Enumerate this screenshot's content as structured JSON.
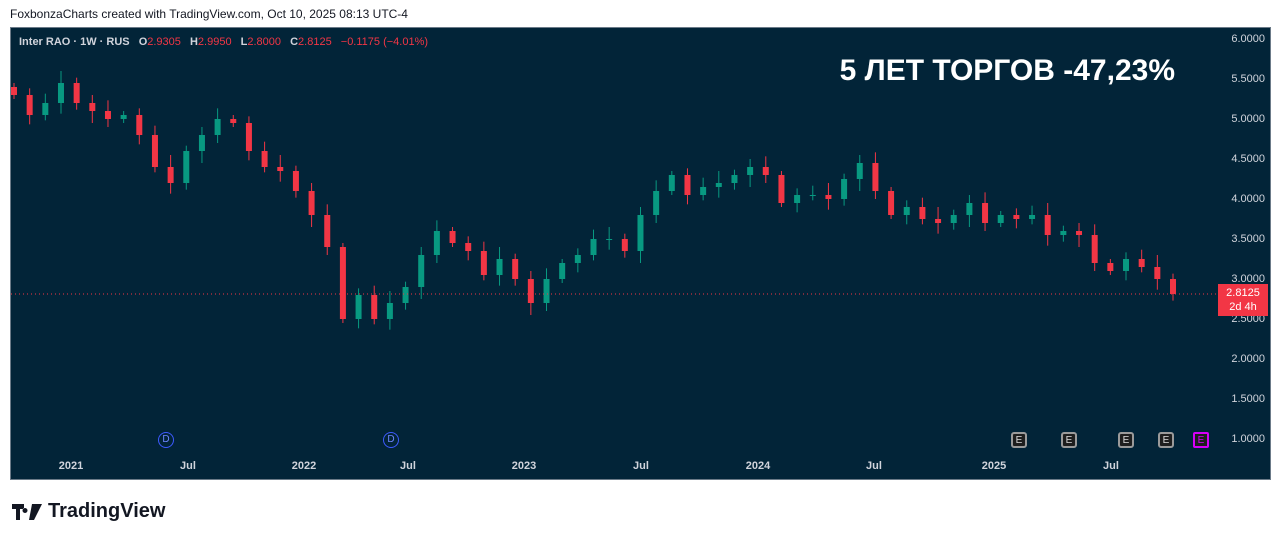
{
  "caption": "FoxbonzaCharts created with TradingView.com, Oct 10, 2025 08:13 UTC-4",
  "legend": {
    "symbol": "Inter RAO · 1W · RUS",
    "o_label": "O",
    "o": "2.9305",
    "h_label": "H",
    "h": "2.9950",
    "l_label": "L",
    "l": "2.8000",
    "c_label": "C",
    "c": "2.8125",
    "change": "−0.1175 (−4.01%)"
  },
  "headline": "5 ЛЕТ ТОРГОВ -47,23%",
  "current_price": {
    "value": "2.8125",
    "countdown": "2d 4h"
  },
  "colors": {
    "up": "#089981",
    "down": "#f23645",
    "background": "#022438"
  },
  "events": {
    "dividend": "D",
    "earnings": "E"
  },
  "logo": "TradingView",
  "chart_data": {
    "type": "candlestick",
    "title": "5 ЛЕТ ТОРГОВ -47,23%",
    "x_ticks": [
      "2021",
      "Jul",
      "2022",
      "Jul",
      "2023",
      "Jul",
      "2024",
      "Jul",
      "2025",
      "Jul"
    ],
    "y_ticks": [
      "6.0000",
      "5.5000",
      "5.0000",
      "4.5000",
      "4.0000",
      "3.5000",
      "3.0000",
      "2.5000",
      "2.0000",
      "1.5000",
      "1.0000"
    ],
    "ylim": [
      1.0,
      6.0
    ],
    "period": "Oct 2020 – Oct 2025",
    "closes": [
      5.3,
      5.05,
      5.2,
      5.45,
      5.2,
      5.1,
      5.0,
      5.05,
      4.8,
      4.4,
      4.2,
      4.6,
      4.8,
      5.0,
      4.95,
      4.6,
      4.4,
      4.35,
      4.1,
      3.8,
      3.4,
      2.5,
      2.8,
      2.5,
      2.7,
      2.9,
      3.3,
      3.6,
      3.45,
      3.35,
      3.05,
      3.25,
      3.0,
      2.7,
      3.0,
      3.2,
      3.3,
      3.5,
      3.5,
      3.35,
      3.8,
      4.1,
      4.3,
      4.05,
      4.15,
      4.2,
      4.3,
      4.4,
      4.3,
      3.95,
      4.05,
      4.05,
      4.0,
      4.25,
      4.45,
      4.1,
      3.8,
      3.9,
      3.75,
      3.7,
      3.8,
      3.95,
      3.7,
      3.8,
      3.75,
      3.8,
      3.55,
      3.6,
      3.55,
      3.2,
      3.1,
      3.25,
      3.15,
      3.0,
      2.8125
    ]
  }
}
